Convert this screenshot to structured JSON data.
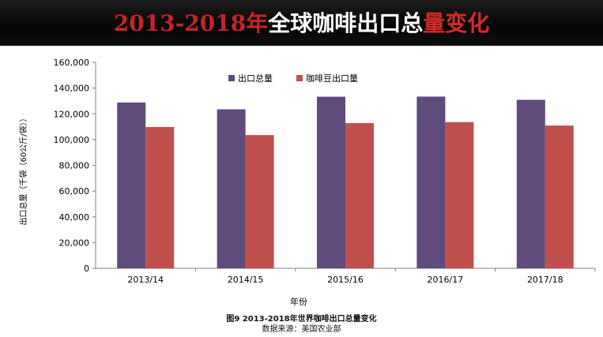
{
  "banner": {
    "part_years": "2013-2018年",
    "part_middle": "全球咖啡出口总",
    "part_end": "量变化"
  },
  "colors": {
    "series1": "#5f4b7c",
    "series2": "#c0504d",
    "banner_red": "#c8222a"
  },
  "chart_data": {
    "type": "bar",
    "title": "",
    "categories": [
      "2013/14",
      "2014/15",
      "2015/16",
      "2016/17",
      "2017/18"
    ],
    "series": [
      {
        "name": "出口总量",
        "values": [
          128800,
          123500,
          133300,
          133400,
          130900
        ]
      },
      {
        "name": "咖啡豆出口量",
        "values": [
          109800,
          103500,
          112800,
          113600,
          110900
        ]
      }
    ],
    "xlabel": "年份",
    "ylabel": "出口总量（千袋（60公斤/袋））",
    "ylim": [
      0,
      160000
    ],
    "yticks": [
      "0",
      "20,000",
      "40,000",
      "60,000",
      "80,000",
      "100,000",
      "120,000",
      "140,000",
      "160,000"
    ],
    "legend_position": "top-center",
    "grid": false
  },
  "caption": {
    "figure_title": "图9  2013-2018年世界咖啡出口总量变化",
    "source": "数据来源：美国农业部"
  }
}
